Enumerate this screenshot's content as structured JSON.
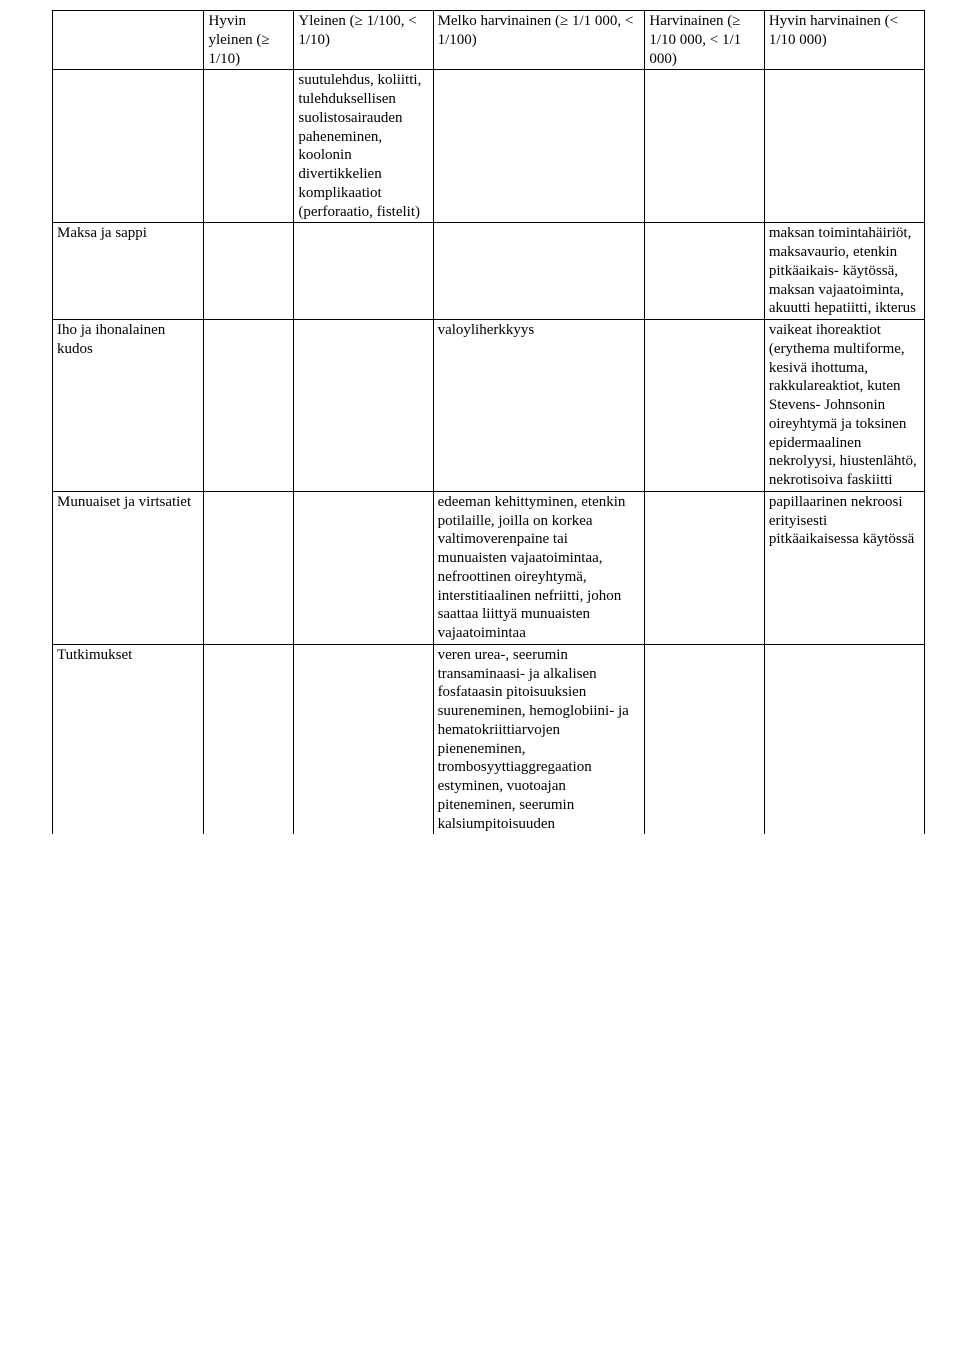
{
  "header": {
    "col1": "Hyvin yleinen (≥ 1/10)",
    "col2": "Yleinen (≥ 1/100, < 1/10)",
    "col3": "Melko harvinainen (≥ 1/1 000, < 1/100)",
    "col4": "Harvinainen (≥ 1/10 000, < 1/1 000)",
    "col5": "Hyvin harvinainen (< 1/10 000)"
  },
  "rows": [
    {
      "label": "",
      "c1": "",
      "c2": "suutulehdus, koliitti, tulehduksellisen suolistosairauden paheneminen, koolonin divertikkelien komplikaatiot (perforaatio, fistelit)",
      "c3": "",
      "c4": "",
      "c5": ""
    },
    {
      "label": "Maksa ja sappi",
      "c1": "",
      "c2": "",
      "c3": "",
      "c4": "",
      "c5": "maksan toimintahäiriöt, maksavaurio, etenkin pitkäaikais- käytössä, maksan vajaatoiminta, akuutti hepatiitti, ikterus"
    },
    {
      "label": "Iho ja ihonalainen kudos",
      "c1": "",
      "c2": "",
      "c3": "valoyliherkkyys",
      "c4": "",
      "c5": "vaikeat ihoreaktiot (erythema multiforme, kesivä ihottuma, rakkulareaktiot, kuten Stevens- Johnsonin oireyhtymä ja toksinen epidermaalinen nekrolyysi, hiustenlähtö, nekrotisoiva faskiitti"
    },
    {
      "label": "Munuaiset ja virtsatiet",
      "c1": "",
      "c2": "",
      "c3": "edeeman kehittyminen, etenkin potilaille, joilla on korkea valtimoverenpaine tai munuaisten vajaatoimintaa, nefroottinen oireyhtymä, interstitiaalinen nefriitti, johon saattaa liittyä munuaisten vajaatoimintaa",
      "c4": "",
      "c5": "papillaarinen nekroosi erityisesti pitkäaikaisessa käytössä"
    },
    {
      "label": "Tutkimukset",
      "c1": "",
      "c2": "",
      "c3": "veren urea-, seerumin transaminaasi- ja alkalisen fosfataasin pitoisuuksien suureneminen, hemoglobiini- ja hematokriittiarvojen pieneneminen, trombosyyttiaggregaation estyminen, vuotoajan piteneminen, seerumin kalsiumpitoisuuden",
      "c4": "",
      "c5": ""
    }
  ]
}
